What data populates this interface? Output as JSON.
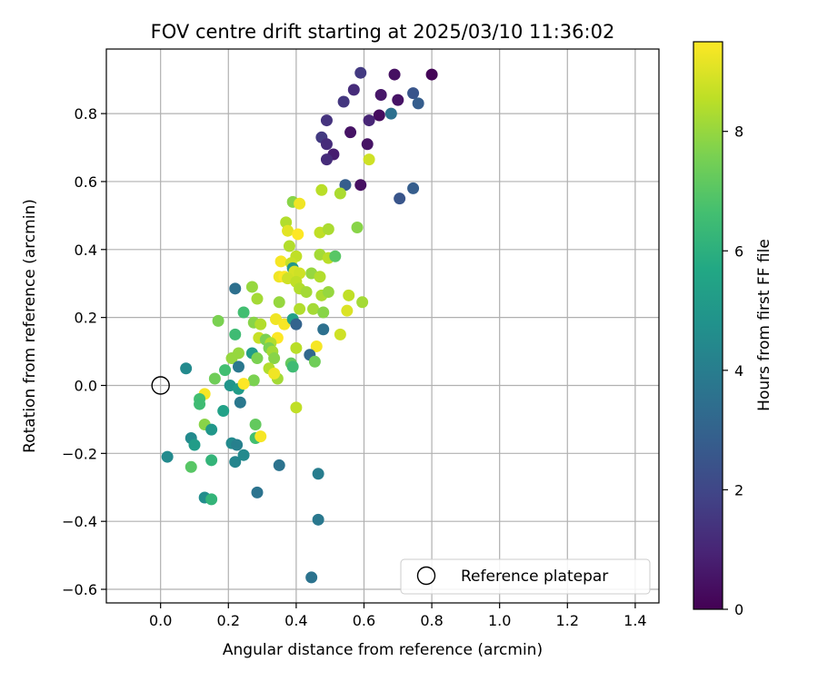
{
  "chart_data": {
    "type": "scatter",
    "title": "FOV centre drift starting at 2025/03/10 11:36:02",
    "xlabel": "Angular distance from reference (arcmin)",
    "ylabel": "Rotation from reference (arcmin)",
    "xlim": [
      -0.16,
      1.47
    ],
    "ylim": [
      -0.64,
      0.99
    ],
    "xticks": [
      0.0,
      0.2,
      0.4,
      0.6,
      0.8,
      1.0,
      1.2,
      1.4
    ],
    "xtick_labels": [
      "0.0",
      "0.2",
      "0.4",
      "0.6",
      "0.8",
      "1.0",
      "1.2",
      "1.4"
    ],
    "yticks": [
      -0.6,
      -0.4,
      -0.2,
      0.0,
      0.2,
      0.4,
      0.6,
      0.8
    ],
    "ytick_labels": [
      "−0.6",
      "−0.4",
      "−0.2",
      "0.0",
      "0.2",
      "0.4",
      "0.6",
      "0.8"
    ],
    "grid": true,
    "colormap": "viridis",
    "colorbar": {
      "label": "Hours from first FF file",
      "min": 0,
      "max": 9.5,
      "ticks": [
        0,
        2,
        4,
        6,
        8
      ],
      "tick_labels": [
        "0",
        "2",
        "4",
        "6",
        "8"
      ]
    },
    "legend": {
      "position": "bottom-right",
      "entries": [
        "Reference platepar"
      ]
    },
    "reference_point": {
      "x": 0.0,
      "y": 0.0,
      "label": "Reference platepar"
    },
    "series": [
      {
        "points": [
          [
            0.8,
            0.915,
            0.1
          ],
          [
            0.69,
            0.915,
            0.4
          ],
          [
            0.59,
            0.92,
            1.6
          ],
          [
            0.57,
            0.87,
            1.2
          ],
          [
            0.54,
            0.835,
            1.5
          ],
          [
            0.65,
            0.855,
            0.6
          ],
          [
            0.7,
            0.84,
            0.5
          ],
          [
            0.745,
            0.86,
            2.5
          ],
          [
            0.76,
            0.83,
            2.8
          ],
          [
            0.68,
            0.8,
            3.5
          ],
          [
            0.645,
            0.795,
            0.3
          ],
          [
            0.615,
            0.78,
            1.0
          ],
          [
            0.49,
            0.78,
            1.4
          ],
          [
            0.56,
            0.745,
            0.5
          ],
          [
            0.475,
            0.73,
            1.6
          ],
          [
            0.49,
            0.71,
            1.2
          ],
          [
            0.61,
            0.71,
            0.5
          ],
          [
            0.51,
            0.68,
            0.8
          ],
          [
            0.49,
            0.665,
            1.2
          ],
          [
            0.545,
            0.59,
            2.8
          ],
          [
            0.59,
            0.59,
            0.4
          ],
          [
            0.705,
            0.55,
            2.5
          ],
          [
            0.745,
            0.58,
            2.8
          ],
          [
            0.615,
            0.665,
            8.8
          ],
          [
            0.475,
            0.575,
            8.5
          ],
          [
            0.53,
            0.565,
            8.3
          ],
          [
            0.39,
            0.54,
            7.8
          ],
          [
            0.41,
            0.535,
            9.3
          ],
          [
            0.37,
            0.48,
            8.4
          ],
          [
            0.375,
            0.455,
            9.1
          ],
          [
            0.405,
            0.445,
            9.5
          ],
          [
            0.47,
            0.45,
            8.6
          ],
          [
            0.495,
            0.46,
            8.3
          ],
          [
            0.58,
            0.465,
            7.8
          ],
          [
            0.38,
            0.41,
            8.4
          ],
          [
            0.4,
            0.38,
            8.6
          ],
          [
            0.47,
            0.385,
            8.2
          ],
          [
            0.495,
            0.375,
            8.5
          ],
          [
            0.515,
            0.38,
            7.0
          ],
          [
            0.355,
            0.365,
            9.4
          ],
          [
            0.385,
            0.36,
            8.7
          ],
          [
            0.39,
            0.345,
            5.0
          ],
          [
            0.395,
            0.335,
            8.9
          ],
          [
            0.41,
            0.33,
            8.8
          ],
          [
            0.445,
            0.33,
            8.0
          ],
          [
            0.47,
            0.32,
            8.4
          ],
          [
            0.35,
            0.32,
            9.3
          ],
          [
            0.365,
            0.32,
            9.5
          ],
          [
            0.375,
            0.315,
            8.8
          ],
          [
            0.4,
            0.305,
            8.6
          ],
          [
            0.41,
            0.285,
            8.4
          ],
          [
            0.43,
            0.275,
            8.2
          ],
          [
            0.475,
            0.265,
            8.3
          ],
          [
            0.495,
            0.275,
            8.0
          ],
          [
            0.555,
            0.265,
            8.6
          ],
          [
            0.595,
            0.245,
            8.2
          ],
          [
            0.27,
            0.29,
            8.0
          ],
          [
            0.285,
            0.255,
            8.2
          ],
          [
            0.35,
            0.245,
            8.0
          ],
          [
            0.41,
            0.225,
            8.4
          ],
          [
            0.45,
            0.225,
            8.2
          ],
          [
            0.48,
            0.215,
            7.8
          ],
          [
            0.55,
            0.22,
            9.0
          ],
          [
            0.22,
            0.285,
            3.5
          ],
          [
            0.245,
            0.215,
            6.6
          ],
          [
            0.275,
            0.185,
            7.8
          ],
          [
            0.295,
            0.18,
            8.4
          ],
          [
            0.34,
            0.195,
            9.3
          ],
          [
            0.365,
            0.18,
            9.4
          ],
          [
            0.39,
            0.195,
            5.4
          ],
          [
            0.4,
            0.18,
            3.0
          ],
          [
            0.48,
            0.165,
            3.5
          ],
          [
            0.53,
            0.15,
            8.8
          ],
          [
            0.17,
            0.19,
            7.6
          ],
          [
            0.22,
            0.15,
            6.5
          ],
          [
            0.29,
            0.14,
            8.7
          ],
          [
            0.31,
            0.135,
            7.6
          ],
          [
            0.345,
            0.14,
            9.5
          ],
          [
            0.325,
            0.125,
            8.4
          ],
          [
            0.32,
            0.11,
            7.6
          ],
          [
            0.33,
            0.1,
            8.2
          ],
          [
            0.4,
            0.11,
            8.5
          ],
          [
            0.46,
            0.115,
            9.4
          ],
          [
            0.44,
            0.09,
            3.2
          ],
          [
            0.27,
            0.095,
            5.2
          ],
          [
            0.23,
            0.095,
            8.0
          ],
          [
            0.21,
            0.08,
            8.0
          ],
          [
            0.285,
            0.08,
            7.6
          ],
          [
            0.335,
            0.08,
            7.8
          ],
          [
            0.455,
            0.07,
            7.4
          ],
          [
            0.385,
            0.065,
            7.2
          ],
          [
            0.39,
            0.055,
            6.5
          ],
          [
            0.32,
            0.05,
            8.4
          ],
          [
            0.23,
            0.055,
            3.8
          ],
          [
            0.19,
            0.045,
            6.6
          ],
          [
            0.075,
            0.05,
            4.5
          ],
          [
            0.16,
            0.02,
            7.4
          ],
          [
            0.275,
            0.015,
            7.6
          ],
          [
            0.345,
            0.02,
            8.2
          ],
          [
            0.335,
            0.035,
            9.3
          ],
          [
            0.205,
            0.0,
            4.9
          ],
          [
            0.23,
            -0.01,
            5.2
          ],
          [
            0.245,
            0.005,
            9.5
          ],
          [
            0.13,
            -0.025,
            9.4
          ],
          [
            0.115,
            -0.04,
            6.6
          ],
          [
            0.115,
            -0.055,
            6.5
          ],
          [
            0.235,
            -0.05,
            3.8
          ],
          [
            0.4,
            -0.065,
            8.6
          ],
          [
            0.185,
            -0.075,
            5.4
          ],
          [
            0.13,
            -0.115,
            7.8
          ],
          [
            0.15,
            -0.13,
            5.0
          ],
          [
            0.28,
            -0.115,
            7.2
          ],
          [
            0.09,
            -0.155,
            4.5
          ],
          [
            0.28,
            -0.155,
            6.6
          ],
          [
            0.295,
            -0.15,
            9.4
          ],
          [
            0.1,
            -0.175,
            5.2
          ],
          [
            0.21,
            -0.17,
            4.5
          ],
          [
            0.225,
            -0.175,
            4.1
          ],
          [
            0.02,
            -0.21,
            4.5
          ],
          [
            0.245,
            -0.205,
            4.5
          ],
          [
            0.22,
            -0.225,
            4.3
          ],
          [
            0.15,
            -0.22,
            6.2
          ],
          [
            0.09,
            -0.24,
            7.0
          ],
          [
            0.35,
            -0.235,
            3.6
          ],
          [
            0.465,
            -0.26,
            4.0
          ],
          [
            0.13,
            -0.33,
            4.6
          ],
          [
            0.15,
            -0.335,
            6.2
          ],
          [
            0.285,
            -0.315,
            3.6
          ],
          [
            0.465,
            -0.395,
            3.8
          ],
          [
            0.445,
            -0.565,
            3.6
          ]
        ]
      }
    ]
  }
}
